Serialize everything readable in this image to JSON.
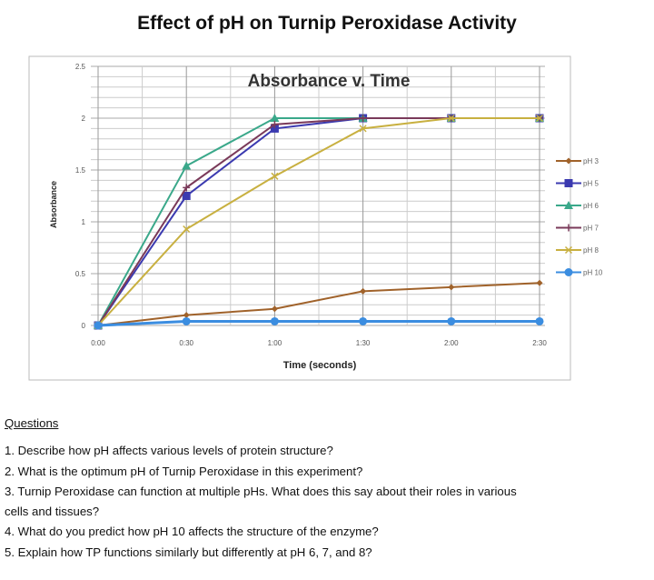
{
  "document": {
    "title": "Effect of pH on Turnip Peroxidase Activity"
  },
  "chart_data": {
    "type": "line",
    "title": "Absorbance v. Time",
    "xlabel": "Time (seconds)",
    "ylabel": "Absorbance",
    "categories": [
      "0:00",
      "0:30",
      "1:00",
      "1:30",
      "2:00",
      "2:30"
    ],
    "yticks": [
      "0",
      "0.5",
      "1",
      "1.5",
      "2",
      "2.5"
    ],
    "ylim": [
      0,
      2.5
    ],
    "grid": true,
    "legend": "right",
    "series": [
      {
        "name": "pH 3",
        "color": "#a0622a",
        "marker": "diamond",
        "values": [
          0,
          0.1,
          0.16,
          0.33,
          0.37,
          0.41
        ]
      },
      {
        "name": "pH 5",
        "color": "#3b3ab0",
        "marker": "square",
        "values": [
          0,
          1.25,
          1.9,
          2,
          2,
          2
        ]
      },
      {
        "name": "pH 6",
        "color": "#3aa88a",
        "marker": "triangle",
        "values": [
          0,
          1.54,
          2,
          2,
          2,
          2
        ]
      },
      {
        "name": "pH 7",
        "color": "#7a3a5a",
        "marker": "cross",
        "values": [
          0,
          1.33,
          1.94,
          2,
          2,
          2
        ]
      },
      {
        "name": "pH 8",
        "color": "#c8b040",
        "marker": "x",
        "values": [
          0,
          0.93,
          1.44,
          1.9,
          2,
          2
        ]
      },
      {
        "name": "pH 10",
        "color": "#3b8de0",
        "marker": "circle",
        "values": [
          0,
          0.04,
          0.04,
          0.04,
          0.04,
          0.04
        ]
      }
    ]
  },
  "questions": {
    "heading": "Questions",
    "items": [
      "1.  Describe how pH affects various levels of protein structure?",
      "2.  What is the optimum pH of Turnip Peroxidase in this experiment?",
      "3.   Turnip Peroxidase can function at multiple pHs.  What does this say about their roles in various",
      "cells and tissues?",
      "4.  What do you predict how pH 10 affects the structure of the enzyme?",
      "5.  Explain how TP functions similarly but differently at pH 6, 7, and 8?"
    ]
  }
}
